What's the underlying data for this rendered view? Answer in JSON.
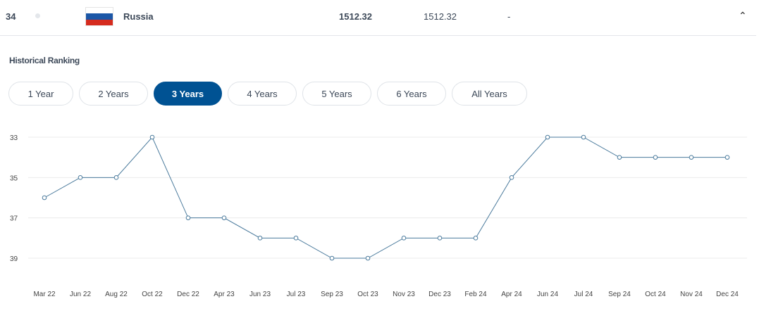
{
  "row": {
    "rank": "34",
    "country": "Russia",
    "points": "1512.32",
    "previous_points": "1512.32",
    "change": "-",
    "flag_colors": [
      "#ffffff",
      "#1c57a7",
      "#d52b1e"
    ]
  },
  "section_title": "Historical Ranking",
  "tabs": [
    {
      "label": "1 Year"
    },
    {
      "label": "2 Years"
    },
    {
      "label": "3 Years",
      "active": true
    },
    {
      "label": "4 Years"
    },
    {
      "label": "5 Years"
    },
    {
      "label": "6 Years"
    },
    {
      "label": "All Years"
    }
  ],
  "accent_color": "#005293",
  "chart_data": {
    "type": "line",
    "categories": [
      "Mar 22",
      "Jun 22",
      "Aug 22",
      "Oct 22",
      "Dec 22",
      "Apr 23",
      "Jun 23",
      "Jul 23",
      "Sep 23",
      "Oct 23",
      "Nov 23",
      "Dec 23",
      "Feb 24",
      "Apr 24",
      "Jun 24",
      "Jul 24",
      "Sep 24",
      "Oct 24",
      "Nov 24",
      "Dec 24"
    ],
    "values": [
      36,
      35,
      35,
      33,
      37,
      37,
      38,
      38,
      39,
      39,
      38,
      38,
      38,
      35,
      33,
      33,
      34,
      34,
      34,
      34
    ],
    "y_ticks": [
      33,
      35,
      37,
      39
    ],
    "ylim": [
      33,
      39
    ],
    "y_inverted": true,
    "grid": true,
    "line_color": "#4a7a9c"
  }
}
